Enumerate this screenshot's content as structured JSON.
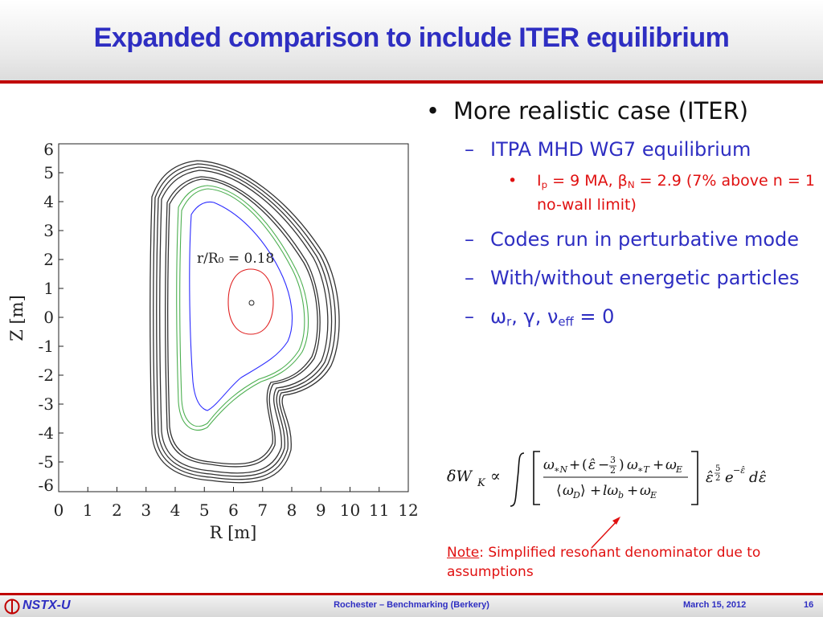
{
  "slide": {
    "title": "Expanded comparison to include ITER equilibrium"
  },
  "plot": {
    "xlabel": "R [m]",
    "ylabel": "Z [m]",
    "xticks": [
      "0",
      "1",
      "2",
      "3",
      "4",
      "5",
      "6",
      "7",
      "8",
      "9",
      "10",
      "11",
      "12"
    ],
    "yticks": [
      "6",
      "5",
      "4",
      "3",
      "2",
      "1",
      "0",
      "-1",
      "-2",
      "-3",
      "-4",
      "-5",
      "-6"
    ],
    "annotation": "r/R₀ = 0.18",
    "colors": {
      "wall": "#333333",
      "green": "#4caf50",
      "blue": "#2b2bff",
      "red": "#e02020"
    }
  },
  "bullets": {
    "main": "More realistic case (ITER)",
    "sub1": "ITPA MHD WG7 equilibrium",
    "detail_ip": "I",
    "detail_ip_sub": "p",
    "detail_rest1": " = 9 MA, β",
    "detail_beta_sub": "N",
    "detail_rest2": " = 2.9 (7% above n = 1 no-wall limit)",
    "sub2": "Codes run in perturbative mode",
    "sub3": "With/without energetic particles",
    "sub4_pre": "ω",
    "sub4_r": "r",
    "sub4_mid": ", γ, ν",
    "sub4_eff": "eff",
    "sub4_post": " = 0"
  },
  "note": {
    "label": "Note",
    "text": ": Simplified resonant denominator due to assumptions"
  },
  "footer": {
    "logo": "NSTX-U",
    "center": "Rochester – Benchmarking (Berkery)",
    "date": "March 15, 2012",
    "page": "16"
  }
}
